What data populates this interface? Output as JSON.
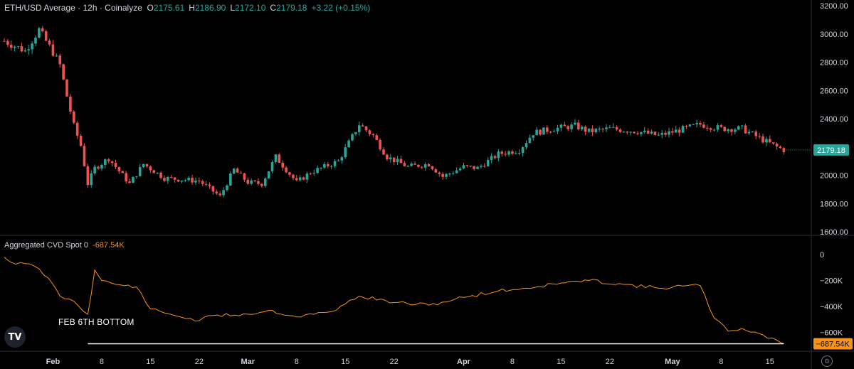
{
  "header": {
    "title": "ETH/USD Average · 12h · Coinalyze",
    "open_label": "O",
    "open": "2175.61",
    "high_label": "H",
    "high": "2186.90",
    "low_label": "L",
    "low": "2172.10",
    "close_label": "C",
    "close": "2179.18",
    "change": "+3.22 (+0.15%)"
  },
  "indicator": {
    "title": "Aggregated CVD Spot 0",
    "value": "-687.54K"
  },
  "annotation": {
    "text": "FEB 6TH BOTTOM"
  },
  "logo": {
    "text": "TV"
  },
  "colors": {
    "up": "#26a69a",
    "down": "#ef5350",
    "cvd": "#f7931a",
    "axis_text": "#d1d4dc",
    "background": "#000000",
    "divider": "#2a2e39"
  },
  "chart_data": [
    {
      "type": "candlestick",
      "name": "ETH/USD Average · 12h · Coinalyze",
      "price_axis": {
        "ticks": [
          1600,
          1800,
          2000,
          2200,
          2400,
          2600,
          2800,
          3000,
          3200
        ],
        "tick_labels": [
          "1600.00",
          "1800.00",
          "2000.00",
          "2200.00",
          "2400.00",
          "2600.00",
          "2800.00",
          "3000.00",
          "3200.00"
        ]
      },
      "last_price_label": "2179.18",
      "time_axis": [
        "Feb",
        "8",
        "15",
        "22",
        "Mar",
        "8",
        "15",
        "22",
        "Apr",
        "8",
        "15",
        "22",
        "May",
        "8",
        "15"
      ],
      "path_points": [
        [
          "Jan 25",
          2950
        ],
        [
          "Jan 28",
          2880
        ],
        [
          "Jan 30",
          3030
        ],
        [
          "Jan 31",
          2950
        ],
        [
          "Feb 1",
          2870
        ],
        [
          "Feb 2",
          2780
        ],
        [
          "Feb 3",
          2560
        ],
        [
          "Feb 4",
          2350
        ],
        [
          "Feb 5",
          2210
        ],
        [
          "Feb 6",
          1940
        ],
        [
          "Feb 7",
          2050
        ],
        [
          "Feb 9",
          2120
        ],
        [
          "Feb 12",
          1940
        ],
        [
          "Feb 14",
          2080
        ],
        [
          "Feb 17",
          1980
        ],
        [
          "Feb 22",
          1960
        ],
        [
          "Feb 25",
          1850
        ],
        [
          "Feb 27",
          2040
        ],
        [
          "Mar 1",
          1950
        ],
        [
          "Mar 3",
          1940
        ],
        [
          "Mar 5",
          2130
        ],
        [
          "Mar 8",
          1950
        ],
        [
          "Mar 10",
          2020
        ],
        [
          "Mar 14",
          2100
        ],
        [
          "Mar 17",
          2360
        ],
        [
          "Mar 19",
          2280
        ],
        [
          "Mar 21",
          2130
        ],
        [
          "Mar 24",
          2060
        ],
        [
          "Mar 27",
          2080
        ],
        [
          "Mar 29",
          1990
        ],
        [
          "Apr 1",
          2060
        ],
        [
          "Apr 3",
          2050
        ],
        [
          "Apr 6",
          2150
        ],
        [
          "Apr 9",
          2180
        ],
        [
          "Apr 11",
          2300
        ],
        [
          "Apr 14",
          2330
        ],
        [
          "Apr 17",
          2350
        ],
        [
          "Apr 19",
          2310
        ],
        [
          "Apr 22",
          2330
        ],
        [
          "Apr 26",
          2310
        ],
        [
          "Apr 29",
          2280
        ],
        [
          "May 2",
          2320
        ],
        [
          "May 5",
          2360
        ],
        [
          "May 8",
          2330
        ],
        [
          "May 11",
          2330
        ],
        [
          "May 14",
          2250
        ],
        [
          "May 16",
          2200
        ],
        [
          "May 17",
          2179
        ]
      ]
    },
    {
      "type": "line",
      "name": "Aggregated CVD Spot 0",
      "value_axis": {
        "ticks": [
          0,
          -200,
          -400,
          -600
        ],
        "tick_labels": [
          "0",
          "−200K",
          "−400K",
          "−600K"
        ]
      },
      "last_value_label": "−687.54K",
      "x": [
        "Jan 25",
        "Jan 26",
        "Jan 28",
        "Jan 30",
        "Feb 1",
        "Feb 2",
        "Feb 4",
        "Feb 6",
        "Feb 7",
        "Feb 8",
        "Feb 10",
        "Feb 13",
        "Feb 15",
        "Feb 17",
        "Feb 22",
        "Feb 24",
        "Mar 1",
        "Mar 4",
        "Mar 8",
        "Mar 13",
        "Mar 15",
        "Mar 17",
        "Mar 22",
        "Mar 27",
        "Apr 1",
        "Apr 6",
        "Apr 10",
        "Apr 15",
        "Apr 19",
        "Apr 24",
        "Apr 29",
        "May 3",
        "May 5",
        "May 7",
        "May 9",
        "May 11",
        "May 14",
        "May 16",
        "May 17"
      ],
      "values": [
        -20,
        -60,
        -70,
        -110,
        -230,
        -320,
        -360,
        -460,
        -120,
        -200,
        -230,
        -250,
        -420,
        -450,
        -510,
        -470,
        -460,
        -430,
        -480,
        -440,
        -380,
        -320,
        -370,
        -390,
        -330,
        -280,
        -260,
        -220,
        -200,
        -230,
        -260,
        -240,
        -240,
        -490,
        -590,
        -570,
        -620,
        -660,
        -687.54
      ],
      "annotation_line": {
        "value": -687.54,
        "from": "Feb 6",
        "to": "May 17"
      }
    }
  ]
}
